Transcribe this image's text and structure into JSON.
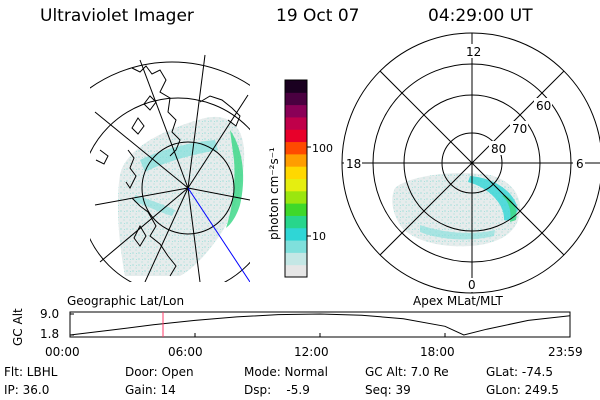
{
  "header": {
    "instrument": "Ultraviolet Imager",
    "date": "19 Oct 07",
    "time": "04:29:00 UT"
  },
  "colorbar": {
    "label": "photon cm⁻²s⁻¹",
    "ticks": [
      "100",
      "10"
    ],
    "scale": "log",
    "colors": [
      "#e6e6e6",
      "#c4e7e5",
      "#7fe0dc",
      "#2fd6d6",
      "#28d68c",
      "#3fd82a",
      "#9be60f",
      "#e5ee10",
      "#ffd800",
      "#ff9d00",
      "#ff4a00",
      "#e8002a",
      "#c0004a",
      "#8a0057",
      "#4a0040",
      "#1a0020"
    ]
  },
  "left_panel": {
    "label": "Geographic Lat/Lon"
  },
  "right_panel": {
    "label": "Apex MLat/MLT",
    "mlt_labels": {
      "top": "12",
      "left": "18",
      "right": "6",
      "bottom": "0"
    },
    "lat_labels": [
      "60",
      "70",
      "80"
    ]
  },
  "orbit": {
    "ylabel": "GC Alt",
    "ylim_labels": [
      "9.0",
      "1.8"
    ],
    "xticks": [
      "00:00",
      "06:00",
      "12:00",
      "18:00",
      "23:59"
    ],
    "current_time_fraction": 0.186,
    "chart_data": {
      "type": "line",
      "title": "",
      "xlabel": "",
      "ylabel": "GC Alt",
      "x": [
        0,
        2,
        4,
        6,
        8,
        10,
        12,
        14,
        16,
        18,
        18.9,
        20,
        22,
        24
      ],
      "y": [
        1.8,
        3.5,
        5.3,
        6.8,
        8.0,
        8.8,
        9.0,
        8.6,
        7.4,
        4.8,
        1.8,
        3.8,
        6.8,
        8.4
      ],
      "xlim": [
        0,
        24
      ],
      "ylim": [
        1.8,
        9.0
      ]
    }
  },
  "footer": {
    "flt": "Flt: LBHL",
    "ip": "IP: 36.0",
    "door": "Door: Open",
    "gain": "Gain: 14",
    "mode": "Mode: Normal",
    "dsp": "Dsp:    -5.9",
    "gcalt": "GC Alt: 7.0 Re",
    "seq": "Seq: 39",
    "glat": "GLat: -74.5",
    "glon": "GLon: 249.5"
  }
}
